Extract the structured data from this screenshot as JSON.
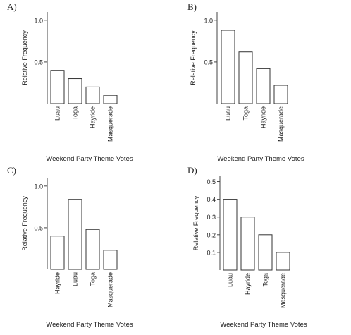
{
  "chart_data": [
    {
      "panel": "A)",
      "type": "bar",
      "categories": [
        "Luau",
        "Toga",
        "Hayride",
        "Masquerade"
      ],
      "values": [
        0.4,
        0.3,
        0.2,
        0.1
      ],
      "xlabel": "Weekend Party Theme Votes",
      "ylabel": "Relative Frequency",
      "ylim": [
        0,
        1.1
      ],
      "yticks": [
        "0.5",
        "1.0"
      ],
      "ytick_values": [
        0.5,
        1.0
      ]
    },
    {
      "panel": "B)",
      "type": "bar",
      "categories": [
        "Luau",
        "Toga",
        "Hayride",
        "Masquerade"
      ],
      "values": [
        0.88,
        0.62,
        0.42,
        0.22
      ],
      "xlabel": "Weekend Party Theme Votes",
      "ylabel": "Relative Frequency",
      "ylim": [
        0,
        1.1
      ],
      "yticks": [
        "0.5",
        "1.0"
      ],
      "ytick_values": [
        0.5,
        1.0
      ]
    },
    {
      "panel": "C)",
      "type": "bar",
      "categories": [
        "Hayride",
        "Luau",
        "Toga",
        "Masquerade"
      ],
      "values": [
        0.4,
        0.84,
        0.48,
        0.23
      ],
      "xlabel": "Weekend Party Theme Votes",
      "ylabel": "Relative Frequency",
      "ylim": [
        0,
        1.1
      ],
      "yticks": [
        "0.5",
        "1.0"
      ],
      "ytick_values": [
        0.5,
        1.0
      ]
    },
    {
      "panel": "D)",
      "type": "bar",
      "categories": [
        "Luau",
        "Hayride",
        "Toga",
        "Masquerade"
      ],
      "values": [
        0.4,
        0.3,
        0.2,
        0.1
      ],
      "xlabel": "Weekend Party Theme Votes",
      "ylabel": "Relative Frequency",
      "ylim": [
        0,
        0.53
      ],
      "yticks": [
        "0.1",
        "0.2",
        "0.3",
        "0.4",
        "0.5"
      ],
      "ytick_values": [
        0.1,
        0.2,
        0.3,
        0.4,
        0.5
      ]
    }
  ]
}
